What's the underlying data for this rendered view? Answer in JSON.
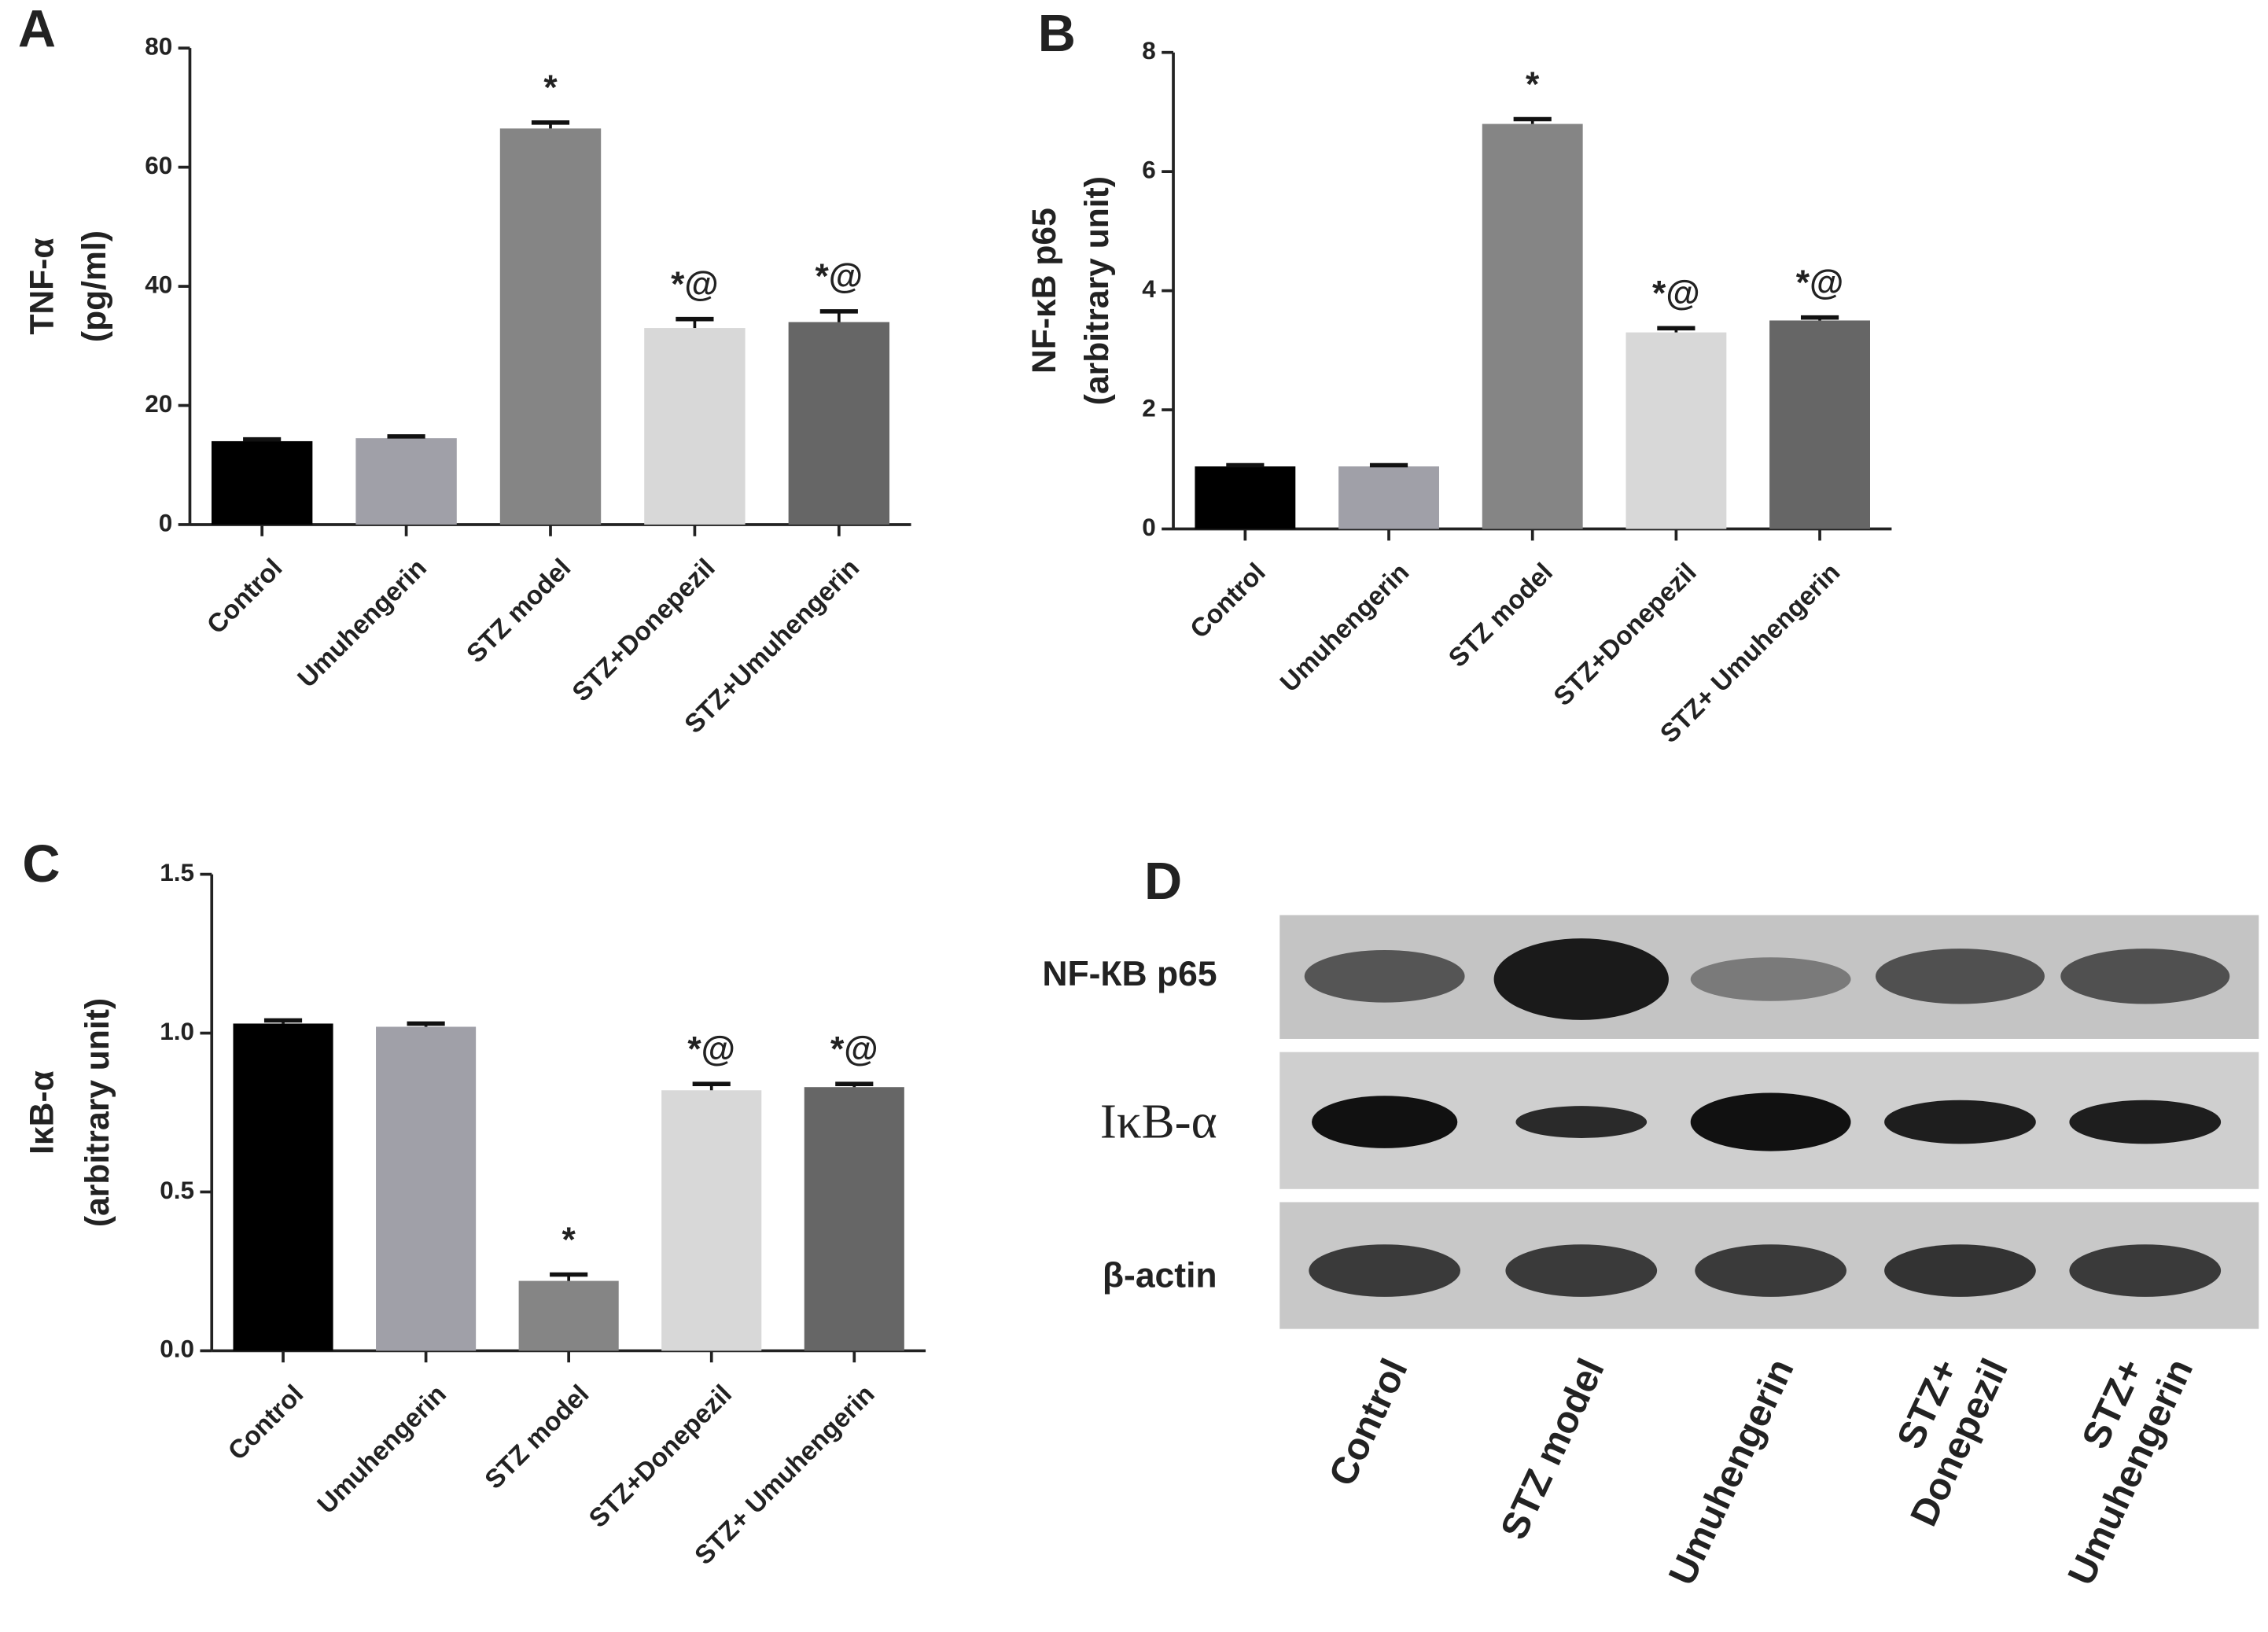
{
  "chart_data": [
    {
      "type": "bar",
      "panel": "A",
      "ylabel": [
        "TNF-α",
        "(pg/ml)"
      ],
      "categories": [
        "Control",
        "Umuhengerin",
        "STZ model",
        "STZ+Donepezil",
        "STZ+Umuhengerin"
      ],
      "values": [
        14,
        14.5,
        66.5,
        33,
        34
      ],
      "errors": [
        0.3,
        0.3,
        1,
        1.5,
        1.8
      ],
      "colors": [
        "#000000",
        "#a0a0a8",
        "#858585",
        "#d8d8d8",
        "#666666"
      ],
      "annotations": [
        null,
        null,
        "*",
        "*@",
        "*@"
      ],
      "ylim": [
        0,
        80
      ],
      "yticks": [
        0,
        20,
        40,
        60,
        80
      ]
    },
    {
      "type": "bar",
      "panel": "B",
      "ylabel": [
        "NF-κB p65",
        "(arbitrary unit)"
      ],
      "categories": [
        "Control",
        "Umuhengerin",
        "STZ model",
        "STZ+Donepezil",
        "STZ+ Umuhengerin"
      ],
      "values": [
        1.05,
        1.05,
        6.8,
        3.3,
        3.5
      ],
      "errors": [
        0.02,
        0.02,
        0.08,
        0.07,
        0.05
      ],
      "colors": [
        "#000000",
        "#a0a0a8",
        "#858585",
        "#d8d8d8",
        "#666666"
      ],
      "annotations": [
        null,
        null,
        "*",
        "*@",
        "*@"
      ],
      "ylim": [
        0,
        8
      ],
      "yticks": [
        0,
        2,
        4,
        6,
        8
      ]
    },
    {
      "type": "bar",
      "panel": "C",
      "ylabel": [
        "IκB-α",
        "(arbitrary unit)"
      ],
      "categories": [
        "Control",
        "Umuhengerin",
        "STZ model",
        "STZ+Donepezil",
        "STZ+ Umuhengerin"
      ],
      "values": [
        1.03,
        1.02,
        0.22,
        0.82,
        0.83
      ],
      "errors": [
        0.01,
        0.01,
        0.02,
        0.02,
        0.01
      ],
      "colors": [
        "#000000",
        "#a0a0a8",
        "#858585",
        "#d8d8d8",
        "#666666"
      ],
      "annotations": [
        null,
        null,
        "*",
        "*@",
        "*@"
      ],
      "ylim": [
        0,
        1.5
      ],
      "yticks": [
        {
          "value": 0,
          "label": "0.0"
        },
        0.5,
        {
          "value": 1,
          "label": "1.0"
        },
        1.5
      ]
    }
  ],
  "blot": {
    "panel": "D",
    "rows": [
      "NF-КB p65",
      "IκB-α",
      "β-actin"
    ],
    "lanes": [
      [
        "Control"
      ],
      [
        "STZ model"
      ],
      [
        "Umuhengerin"
      ],
      [
        "STZ+",
        "Donepezil"
      ],
      [
        "STZ+",
        "Umuhengerin"
      ]
    ]
  }
}
